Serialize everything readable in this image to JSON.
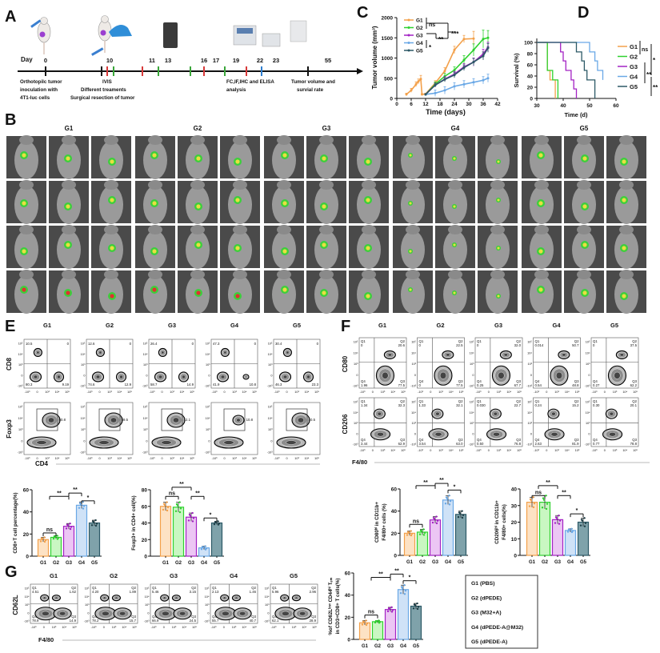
{
  "panel_letters": [
    "A",
    "B",
    "C",
    "D",
    "E",
    "F",
    "G"
  ],
  "timeline": {
    "day_label": "Day",
    "days": [
      "0",
      "10",
      "11",
      "13",
      "16",
      "17",
      "19",
      "22",
      "23",
      "55"
    ],
    "tick_colors": [
      "#111111",
      "#111111",
      "#d83a3a",
      "#3aa63a",
      "#d83a3a",
      "#3aa63a",
      "#3aa63a",
      "#d83a3a",
      "#3aa63a",
      "#d83a3a",
      "#2f7fd0",
      "#111111"
    ],
    "inoculation": [
      "Orthotopilc tumor",
      "inoculation with",
      "4T1-luc cells"
    ],
    "ivis": "IVIS",
    "treatments": "Different treaments",
    "resection": "Surgical resection of tumor",
    "analysis": [
      "FC,IF,IHC and ELISA",
      "analysis"
    ],
    "endpoint": [
      "Tumor volume and",
      "survial rate"
    ],
    "colors": {
      "ivis": "#d83a3a",
      "treat": "#3aa63a",
      "analysis": "#2f7fd0"
    }
  },
  "groups": [
    "G1",
    "G2",
    "G3",
    "G4",
    "G5"
  ],
  "group_colors": [
    "#f3a04a",
    "#2fd12f",
    "#a322c4",
    "#6aa8e6",
    "#2c5966"
  ],
  "group_fills": [
    "#fde2c4",
    "#c9f7c2",
    "#ecc6f4",
    "#cfe2f7",
    "#7fa2aa"
  ],
  "legend_box": [
    "G1 (PBS)",
    "G2 (dPEDE)",
    "G3 (M32+A)",
    "G4 (dPEDE-A@M32)",
    "G5 (dPEDE-A)"
  ],
  "chart_data": [
    {
      "type": "line",
      "title": "",
      "xlabel": "Time (days)",
      "ylabel": "Tumor volume (mm³)",
      "xlim": [
        0,
        42
      ],
      "ylim": [
        0,
        2000
      ],
      "xticks": [
        0,
        6,
        12,
        18,
        24,
        30,
        36,
        42
      ],
      "yticks": [
        0,
        500,
        1000,
        1500,
        2000
      ],
      "legend": "top-left",
      "sig": [
        "ns",
        "**",
        "***",
        "*"
      ],
      "series": [
        {
          "name": "G1",
          "x": [
            4,
            6,
            8,
            9,
            10,
            10.5,
            12,
            16,
            20,
            24,
            28,
            32
          ],
          "y": [
            100,
            200,
            350,
            420,
            480,
            100,
            110,
            380,
            680,
            1200,
            1470,
            1480
          ],
          "err": [
            30,
            50,
            60,
            60,
            90,
            20,
            20,
            60,
            80,
            90,
            90,
            180
          ]
        },
        {
          "name": "G2",
          "x": [
            12,
            16,
            20,
            24,
            28,
            32,
            36,
            38
          ],
          "y": [
            100,
            350,
            550,
            700,
            950,
            1200,
            1470,
            1500
          ],
          "err": [
            20,
            60,
            70,
            80,
            110,
            150,
            220,
            180
          ]
        },
        {
          "name": "G3",
          "x": [
            12,
            16,
            20,
            24,
            28,
            32,
            36,
            38
          ],
          "y": [
            100,
            330,
            480,
            600,
            780,
            900,
            1100,
            1270
          ],
          "err": [
            20,
            50,
            60,
            70,
            80,
            100,
            120,
            120
          ]
        },
        {
          "name": "G4",
          "x": [
            12,
            16,
            20,
            24,
            28,
            32,
            36,
            38
          ],
          "y": [
            100,
            130,
            200,
            300,
            350,
            400,
            450,
            500
          ],
          "err": [
            20,
            80,
            90,
            90,
            90,
            90,
            90,
            100
          ]
        },
        {
          "name": "G5",
          "x": [
            12,
            16,
            20,
            24,
            28,
            32,
            36,
            38
          ],
          "y": [
            100,
            330,
            470,
            580,
            760,
            900,
            1050,
            1250
          ],
          "err": [
            20,
            50,
            60,
            70,
            70,
            90,
            100,
            110
          ]
        }
      ]
    },
    {
      "type": "line",
      "title": "",
      "xlabel": "Time (d)",
      "ylabel": "Survival (%)",
      "xlim": [
        30,
        60
      ],
      "ylim": [
        0,
        100
      ],
      "xticks": [
        30,
        40,
        50,
        60
      ],
      "yticks": [
        0,
        20,
        40,
        60,
        80,
        100
      ],
      "legend": "right",
      "sig": [
        "ns",
        "*",
        "**",
        "**"
      ],
      "series": [
        {
          "name": "G1",
          "times": [
            30,
            34,
            35,
            37
          ],
          "survival": [
            100,
            50,
            33,
            0
          ]
        },
        {
          "name": "G2",
          "times": [
            30,
            34,
            36,
            38
          ],
          "survival": [
            100,
            50,
            33,
            0
          ]
        },
        {
          "name": "G3",
          "times": [
            30,
            39,
            40,
            41,
            43,
            44,
            45
          ],
          "survival": [
            100,
            83,
            67,
            50,
            33,
            17,
            0
          ]
        },
        {
          "name": "G4",
          "times": [
            30,
            50,
            52,
            53,
            55
          ],
          "survival": [
            100,
            83,
            67,
            50,
            33
          ]
        },
        {
          "name": "G5",
          "times": [
            30,
            45,
            47,
            48,
            49,
            52
          ],
          "survival": [
            100,
            83,
            67,
            50,
            33,
            0
          ]
        }
      ]
    },
    {
      "type": "bar",
      "title": "",
      "xlabel": "",
      "ylabel": [
        "CD8+T cell percentage(%)"
      ],
      "categories": [
        "G1",
        "G2",
        "G3",
        "G4",
        "G5"
      ],
      "values": [
        15,
        17,
        27,
        46,
        30
      ],
      "sd": [
        2,
        1.5,
        2.5,
        3,
        2.5
      ],
      "ylim": [
        0,
        60
      ],
      "yticks": [
        0,
        20,
        40,
        60
      ],
      "sig": [
        {
          "label": "ns",
          "from": 0,
          "to": 1,
          "y": 21
        },
        {
          "label": "**",
          "from": 0.5,
          "to": 2,
          "y": 54
        },
        {
          "label": "**",
          "from": 2,
          "to": 3,
          "y": 57
        },
        {
          "label": "*",
          "from": 3,
          "to": 4,
          "y": 50
        }
      ]
    },
    {
      "type": "bar",
      "title": "",
      "xlabel": "",
      "ylabel": [
        "Foxp3+ in CD4+ cell(%)"
      ],
      "categories": [
        "G1",
        "G2",
        "G3",
        "G4",
        "G5"
      ],
      "values": [
        60,
        59,
        47,
        10,
        40
      ],
      "sd": [
        5,
        6,
        5,
        2,
        2
      ],
      "ylim": [
        0,
        80
      ],
      "yticks": [
        0,
        20,
        40,
        60,
        80
      ],
      "sig": [
        {
          "label": "ns",
          "from": 0,
          "to": 1,
          "y": 72
        },
        {
          "label": "**",
          "from": 0.5,
          "to": 2,
          "y": 83
        },
        {
          "label": "**",
          "from": 2,
          "to": 3,
          "y": 72
        },
        {
          "label": "*",
          "from": 3,
          "to": 4,
          "y": 46
        }
      ]
    },
    {
      "type": "bar",
      "title": "",
      "xlabel": "",
      "ylabel": [
        "CD80ʰⁱ in CD11b+",
        "F4/80+ cells (%)"
      ],
      "categories": [
        "G1",
        "G2",
        "G3",
        "G4",
        "G5"
      ],
      "values": [
        20,
        21,
        32,
        50,
        37
      ],
      "sd": [
        2,
        2.5,
        3,
        4,
        3
      ],
      "ylim": [
        0,
        60
      ],
      "yticks": [
        0,
        20,
        40,
        60
      ],
      "sig": [
        {
          "label": "ns",
          "from": 0,
          "to": 1,
          "y": 28
        },
        {
          "label": "**",
          "from": 0.5,
          "to": 2,
          "y": 63
        },
        {
          "label": "**",
          "from": 2,
          "to": 3,
          "y": 65
        },
        {
          "label": "*",
          "from": 3,
          "to": 4,
          "y": 59
        }
      ]
    },
    {
      "type": "bar",
      "title": "",
      "xlabel": "",
      "ylabel": [
        "CD206ʰⁱ in CD11b+",
        "F4/80+ cells(%)"
      ],
      "categories": [
        "G1",
        "G2",
        "G3",
        "G4",
        "G5"
      ],
      "values": [
        32,
        32,
        21.5,
        15,
        20
      ],
      "sd": [
        3,
        4,
        2.5,
        1,
        2.5
      ],
      "ylim": [
        0,
        40
      ],
      "yticks": [
        0,
        10,
        20,
        30,
        40
      ],
      "sig": [
        {
          "label": "ns",
          "from": 0,
          "to": 1,
          "y": 36
        },
        {
          "label": "**",
          "from": 0.5,
          "to": 2,
          "y": 42
        },
        {
          "label": "**",
          "from": 2,
          "to": 3,
          "y": 36
        },
        {
          "label": "*",
          "from": 3,
          "to": 4,
          "y": 25
        }
      ]
    },
    {
      "type": "bar",
      "title": "",
      "xlabel": "",
      "ylabel": [
        "%of CD62Lˡᵒʷ CD44ʰⁱ Tₑₘ",
        "in CD3+CD8+ T cells(%)"
      ],
      "categories": [
        "G1",
        "G2",
        "G3",
        "G4",
        "G5"
      ],
      "values": [
        15,
        16,
        27,
        45,
        30
      ],
      "sd": [
        2,
        1,
        2,
        4,
        2.5
      ],
      "ylim": [
        0,
        60
      ],
      "yticks": [
        0,
        20,
        40,
        60
      ],
      "sig": [
        {
          "label": "ns",
          "from": 0,
          "to": 1,
          "y": 22
        },
        {
          "label": "**",
          "from": 0.5,
          "to": 2,
          "y": 56
        },
        {
          "label": "**",
          "from": 2,
          "to": 3,
          "y": 59
        },
        {
          "label": "*",
          "from": 3,
          "to": 4,
          "y": 53
        }
      ]
    }
  ],
  "flow": {
    "x_ticks": [
      "-10³",
      "0",
      "10³",
      "10⁴",
      "10⁵"
    ],
    "y_ticks": [
      "10⁵",
      "10⁴",
      "10³",
      "0",
      "-10³"
    ],
    "quad_names": [
      "Q1",
      "Q2",
      "Q3",
      "Q4"
    ],
    "E_cd8": {
      "ylabel": "CD8",
      "values": [
        [
          "10.5",
          "0",
          "80.3",
          "9.19"
        ],
        [
          "12.6",
          "0",
          "74.6",
          "12.9"
        ],
        [
          "26.4",
          "0",
          "58.7",
          "14.9"
        ],
        [
          "47.3",
          "0",
          "41.9",
          "10.8"
        ],
        [
          "30.4",
          "0",
          "46.3",
          "23.3"
        ]
      ]
    },
    "E_foxp3": {
      "ylabel": "Foxp3",
      "xlabel": "CD4",
      "values": [
        "60.8",
        "59.5",
        "42.1",
        "10.8",
        "40.5"
      ]
    },
    "F_cd80": {
      "ylabel": "CD80",
      "values": [
        [
          "0",
          "20.6",
          "77.5",
          "1.96"
        ],
        [
          "0",
          "22.5",
          "77.5",
          "0"
        ],
        [
          "0",
          "32.0",
          "67.7",
          "0.25"
        ],
        [
          "0.014",
          "50.7",
          "48.8",
          "0.54"
        ],
        [
          "0",
          "37.5",
          "62.2",
          "0.27"
        ]
      ]
    },
    "F_cd206": {
      "ylabel": "CD206",
      "xlabel": "F4/80",
      "values": [
        [
          "1.34",
          "32.3",
          "62.9",
          "3.44"
        ],
        [
          "1.33",
          "32.1",
          "63.0",
          "3.54"
        ],
        [
          "0.030",
          "22.7",
          "76.8",
          "0.50"
        ],
        [
          "0.24",
          "15.2",
          "81.9",
          "2.63"
        ],
        [
          "0.30",
          "20.1",
          "78.8",
          "0.77"
        ]
      ]
    },
    "G_cd62l": {
      "ylabel": "CD62L",
      "xlabel": "F4/80",
      "values": [
        [
          "4.51",
          "1.62",
          "14.9",
          "78.9"
        ],
        [
          "4.20",
          "1.89",
          "15.7",
          "78.2"
        ],
        [
          "5.46",
          "3.15",
          "24.5",
          "66.9"
        ],
        [
          "2.13",
          "1.46",
          "40.7",
          "55.7"
        ],
        [
          "5.96",
          "2.96",
          "28.9",
          "62.1"
        ]
      ]
    }
  }
}
